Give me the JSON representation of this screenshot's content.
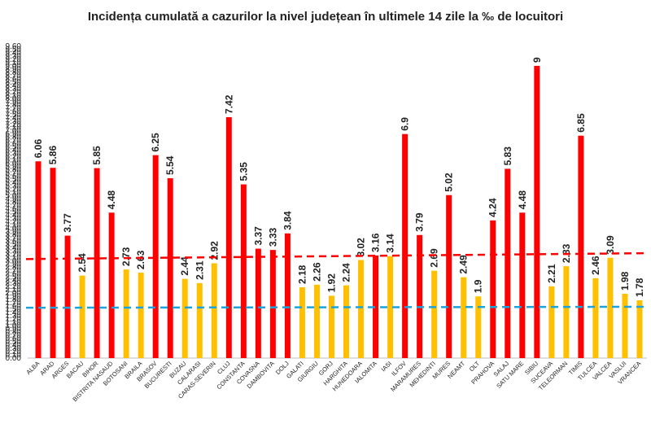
{
  "chart_data": {
    "type": "bar",
    "title": "Incidența cumulată a cazurilor la nivel județean în ultimele 14 zile la ‰ de locuitori",
    "categories": [
      "ALBA",
      "ARAD",
      "ARGES",
      "BACAU",
      "BIHOR",
      "BISTRITA NASAUD",
      "BOTOSANI",
      "BRAILA",
      "BRASOV",
      "BUCURESTI",
      "BUZAU",
      "CALARASI",
      "CARAS-SEVERIN",
      "CLUJ",
      "CONSTANTA",
      "COVASNA",
      "DAMBOVITA",
      "DOLJ",
      "GALATI",
      "GIURGIU",
      "GORJ",
      "HARGHITA",
      "HUNEDOARA",
      "IALOMITA",
      "IASI",
      "ILFOV",
      "MARAMURES",
      "MEHEDINTI",
      "MURES",
      "NEAMT",
      "OLT",
      "PRAHOVA",
      "SALAJ",
      "SATU MARE",
      "SIBIU",
      "SUCEAVA",
      "TELEORMAN",
      "TIMIS",
      "TULCEA",
      "VALCEA",
      "VASLUI",
      "VRANCEA"
    ],
    "values": [
      6.06,
      5.86,
      3.77,
      2.54,
      5.85,
      4.48,
      2.73,
      2.63,
      6.25,
      5.54,
      2.44,
      2.31,
      2.92,
      7.42,
      5.35,
      3.37,
      3.33,
      3.84,
      2.18,
      2.26,
      1.92,
      2.24,
      3.02,
      3.16,
      3.14,
      6.9,
      3.79,
      2.69,
      5.02,
      2.49,
      1.9,
      4.24,
      5.83,
      4.48,
      9,
      2.21,
      2.83,
      6.85,
      2.46,
      3.09,
      1.98,
      1.78
    ],
    "value_labels": [
      "6.06",
      "5.86",
      "3.77",
      "2.54",
      "5.85",
      "4.48",
      "2.73",
      "2.63",
      "6.25",
      "5.54",
      "2.44",
      "2.31",
      "2.92",
      "7.42",
      "5.35",
      "3.37",
      "3.33",
      "3.84",
      "2.18",
      "2.26",
      "1.92",
      "2.24",
      "3.02",
      "3.16",
      "3.14",
      "6.9",
      "3.79",
      "2.69",
      "5.02",
      "2.49",
      "1.9",
      "4.24",
      "5.83",
      "4.48",
      "9",
      "2.21",
      "2.83",
      "6.85",
      "2.46",
      "3.09",
      "1.98",
      "1.78"
    ],
    "ylim": [
      0,
      9.6
    ],
    "yticks": [
      "0.00",
      "0.10",
      "0.20",
      "0.30",
      "0.40",
      "0.50",
      "0.60",
      "0.70",
      "0.80",
      "0.90",
      "1.00",
      "1.10",
      "1.20",
      "1.30",
      "1.40",
      "1.50",
      "1.60",
      "1.70",
      "1.80",
      "1.90",
      "2.00",
      "2.10",
      "2.20",
      "2.30",
      "2.40",
      "2.50",
      "2.60",
      "2.70",
      "2.80",
      "2.90",
      "3.00",
      "3.10",
      "3.20",
      "3.30",
      "3.40",
      "3.50",
      "3.60",
      "3.70",
      "3.80",
      "3.90",
      "4.00",
      "4.10",
      "4.20",
      "4.30",
      "4.40",
      "4.50",
      "4.60",
      "4.70",
      "4.80",
      "4.90",
      "5.00",
      "5.10",
      "5.20",
      "5.30",
      "5.40",
      "5.50",
      "5.60",
      "5.70",
      "5.80",
      "5.90",
      "6.00",
      "6.10",
      "6.20",
      "6.30",
      "6.40",
      "6.50",
      "6.60",
      "6.70",
      "6.80",
      "6.90",
      "7.00",
      "7.10",
      "7.20",
      "7.30",
      "7.40",
      "7.50",
      "7.60",
      "7.70",
      "7.80",
      "7.90",
      "8.00",
      "8.10",
      "8.20",
      "8.30",
      "8.40",
      "8.50",
      "8.60",
      "8.70",
      "8.80",
      "8.90",
      "9.00",
      "9.10",
      "9.20",
      "9.30",
      "9.40",
      "9.50",
      "9.60"
    ],
    "red_threshold_line": {
      "start": 3.05,
      "end": 3.23,
      "color": "#ff0000",
      "style": "dashed"
    },
    "blue_threshold_line": {
      "start": 1.55,
      "end": 1.58,
      "color": "#1aa3dc",
      "style": "dashed"
    },
    "colors": {
      "above": "#ff0000",
      "below": "#ffc000"
    },
    "grid": false,
    "legend": "none"
  }
}
